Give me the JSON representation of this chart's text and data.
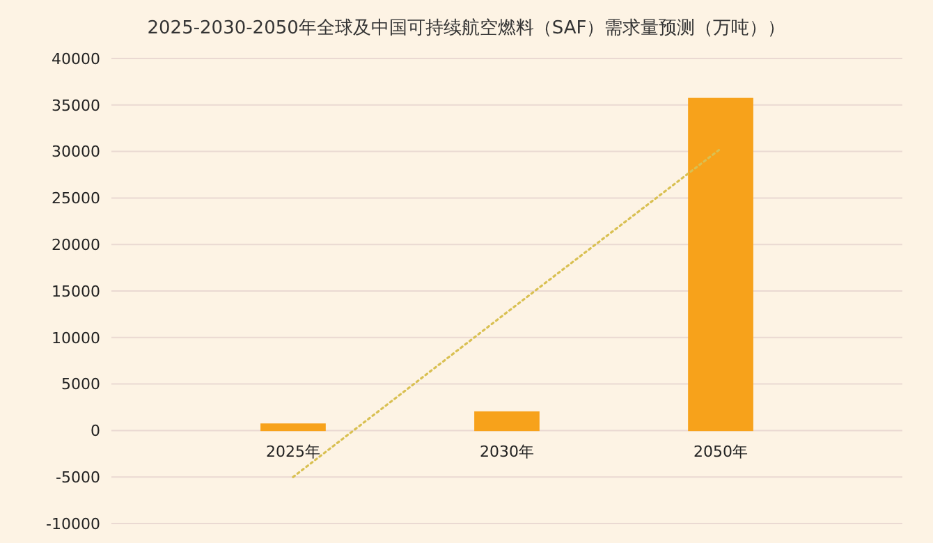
{
  "chart_data": {
    "type": "bar",
    "title": "2025-2030-2050年全球及中国可持续航空燃料（SAF）需求量预测（万吨））",
    "categories": [
      "2025年",
      "2030年",
      "2050年"
    ],
    "series": [
      {
        "color": "#f7a21b",
        "values": [
          700,
          2000,
          35700
        ]
      },
      {
        "type": "line",
        "color": "#d9c052",
        "values": [
          -5000,
          12700,
          30300
        ],
        "line_style": "dotted",
        "marker": "none"
      }
    ],
    "ylim": [
      -10000,
      40000
    ],
    "yticks": [
      -10000,
      -5000,
      0,
      5000,
      10000,
      15000,
      20000,
      25000,
      30000,
      35000,
      40000
    ],
    "grid": "y"
  }
}
